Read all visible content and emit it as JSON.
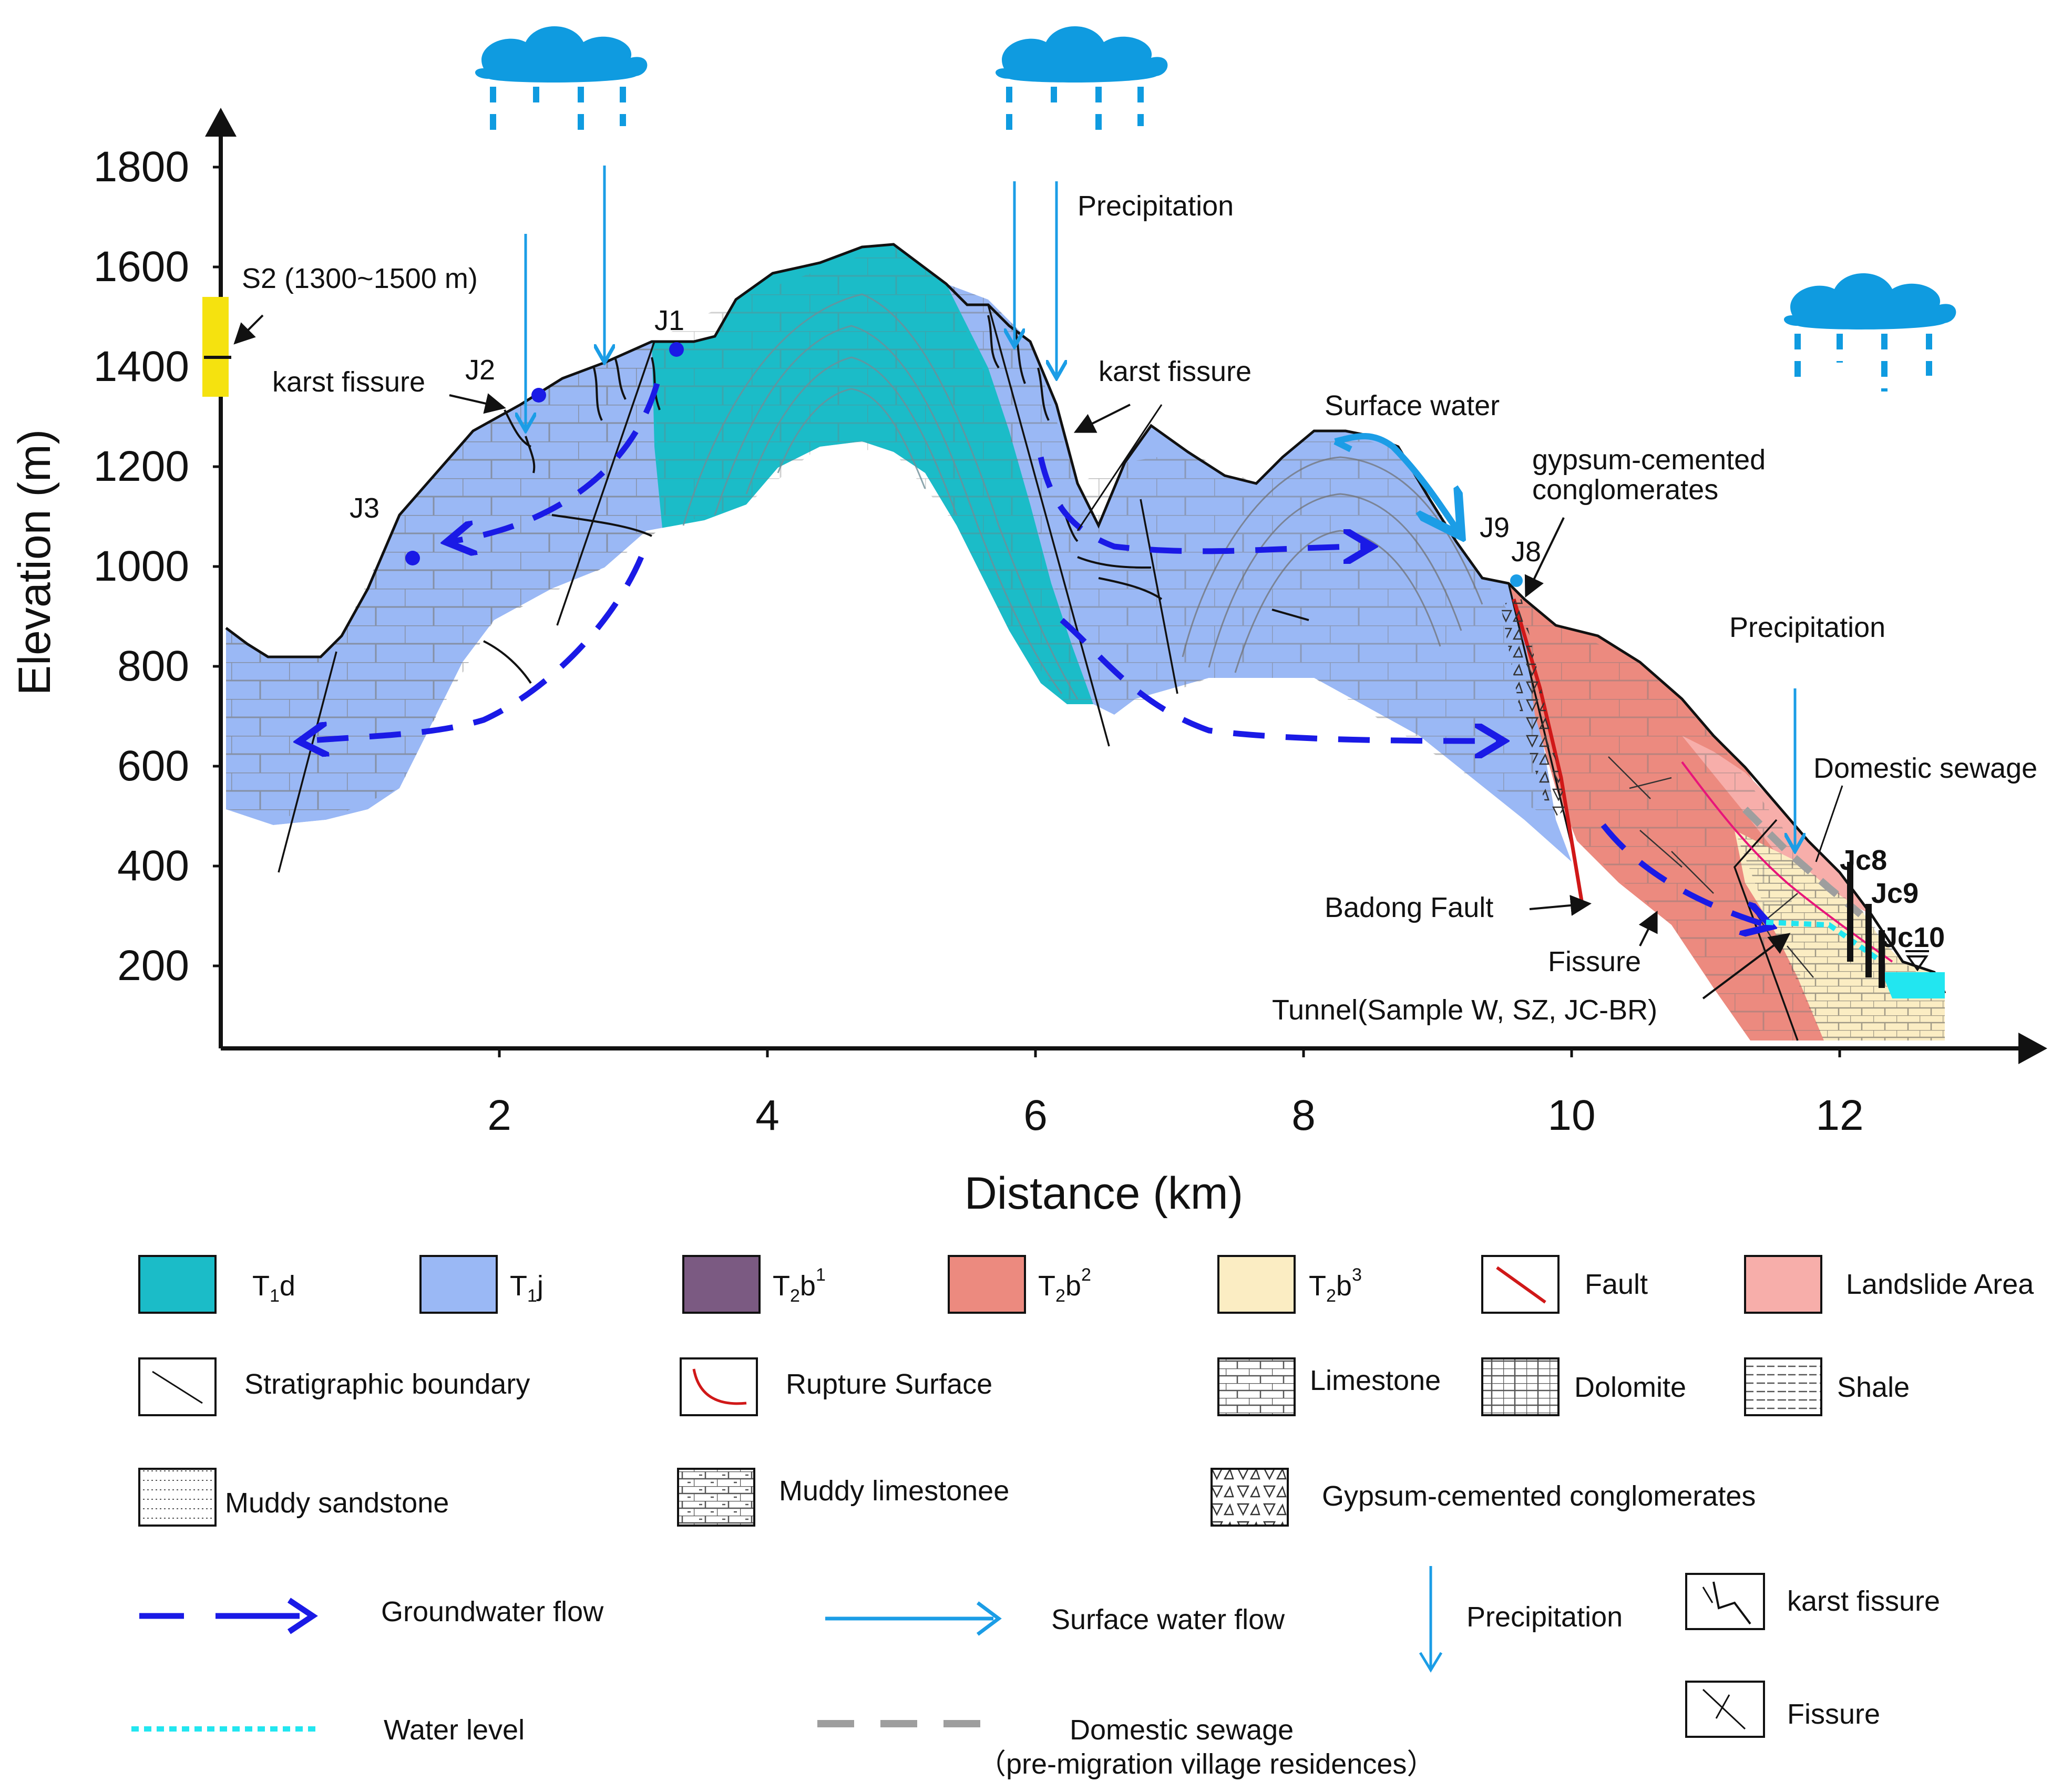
{
  "axes": {
    "ylabel": "Elevation (m)",
    "xlabel": "Distance (km)",
    "yticks": [
      "1800",
      "1600",
      "1400",
      "1200",
      "1000",
      "800",
      "600",
      "400",
      "200"
    ],
    "xticks": [
      "2",
      "4",
      "6",
      "8",
      "10",
      "12"
    ]
  },
  "annotations": {
    "s2": "S2 (1300~1500 m)",
    "j1": "J1",
    "j2": "J2",
    "j3": "J3",
    "j8": "J8",
    "j9": "J9",
    "jc8": "Jc8",
    "jc9": "Jc9",
    "jc10": "Jc10",
    "karst_left": "karst fissure",
    "karst_mid": "karst fissure",
    "precip_top": "Precipitation",
    "precip_right": "Precipitation",
    "surface_water": "Surface water",
    "gypsum_line1": "gypsum-cemented",
    "gypsum_line2": "conglomerates",
    "domestic_sewage": "Domestic sewage",
    "badong_fault": "Badong Fault",
    "fissure": "Fissure",
    "tunnel": "Tunnel(Sample W, SZ, JC-BR)"
  },
  "legend": {
    "t1d": {
      "base": "T",
      "sub": "1",
      "suffix": "d",
      "color": "#1bbcc8"
    },
    "t1j": {
      "base": "T",
      "sub": "1",
      "suffix": "j",
      "color": "#9ab8f5"
    },
    "t2b1": {
      "base": "T",
      "sub": "2",
      "suffix": "b",
      "sup": "1",
      "color": "#7b5a82"
    },
    "t2b2": {
      "base": "T",
      "sub": "2",
      "suffix": "b",
      "sup": "2",
      "color": "#ec8a7f"
    },
    "t2b3": {
      "base": "T",
      "sub": "2",
      "suffix": "b",
      "sup": "3",
      "color": "#fbedc3"
    },
    "fault": "Fault",
    "landslide_area": {
      "label": "Landslide Area",
      "color": "#f7aeaa"
    },
    "stratigraphic_boundary": "Stratigraphic boundary",
    "rupture_surface": "Rupture Surface",
    "limestone": "Limestone",
    "dolomite": "Dolomite",
    "shale": "Shale",
    "muddy_sandstone": "Muddy sandstone",
    "muddy_limestone": "Muddy limestonee",
    "gypsum_conglomerates": "Gypsum-cemented conglomerates",
    "groundwater_flow": "Groundwater flow",
    "surface_water_flow": "Surface water flow",
    "precipitation": "Precipitation",
    "karst_fissure": "karst fissure",
    "water_level": "Water level",
    "fissure": "Fissure",
    "domestic_sewage": "Domestic sewage",
    "domestic_sewage_note": "（pre-migration village residences）"
  },
  "colors": {
    "groundwater": "#1a1ae6",
    "surface_water": "#1b9de6",
    "water_level": "#22e6f0",
    "sewage": "#9e9e9e",
    "fault": "#d01818",
    "cloud": "#0f9be0",
    "s2_marker": "#f5e20f"
  }
}
